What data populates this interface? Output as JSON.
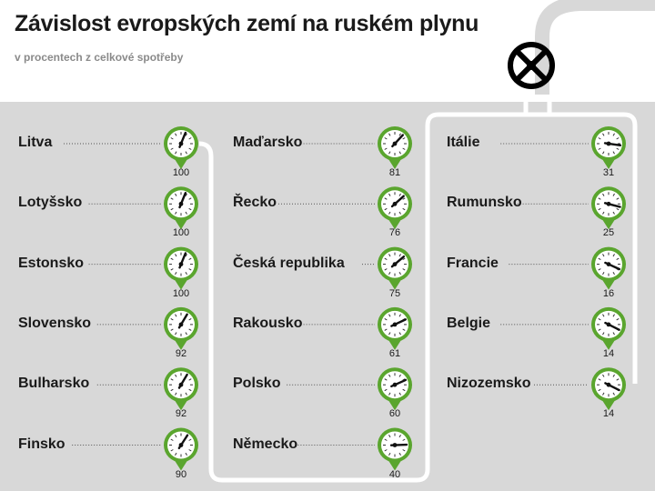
{
  "title": "Závislost evropských zemí na ruském plynu",
  "subtitle": "v procentech z celkové spotřeby",
  "colors": {
    "panel": "#d8d8d8",
    "pipe": "#ffffff",
    "gauge_ring": "#5aa52e",
    "text": "#1a1a1a",
    "subtitle": "#8a8a8a",
    "valve": "#000000",
    "top_pipe": "#d8d8d8"
  },
  "chart_data": {
    "type": "gauge",
    "unit": "%",
    "gauge_range": [
      0,
      100
    ],
    "columns": [
      [
        {
          "label": "Litva",
          "value": 100
        },
        {
          "label": "Lotyšsko",
          "value": 100
        },
        {
          "label": "Estonsko",
          "value": 100
        },
        {
          "label": "Slovensko",
          "value": 92
        },
        {
          "label": "Bulharsko",
          "value": 92
        },
        {
          "label": "Finsko",
          "value": 90
        }
      ],
      [
        {
          "label": "Maďarsko",
          "value": 81
        },
        {
          "label": "Řecko",
          "value": 76
        },
        {
          "label": "Česká republika",
          "value": 75
        },
        {
          "label": "Rakousko",
          "value": 61
        },
        {
          "label": "Polsko",
          "value": 60
        },
        {
          "label": "Německo",
          "value": 40
        }
      ],
      [
        {
          "label": "Itálie",
          "value": 31
        },
        {
          "label": "Rumunsko",
          "value": 25
        },
        {
          "label": "Francie",
          "value": 16
        },
        {
          "label": "Belgie",
          "value": 14
        },
        {
          "label": "Nizozemsko",
          "value": 14
        }
      ]
    ]
  }
}
